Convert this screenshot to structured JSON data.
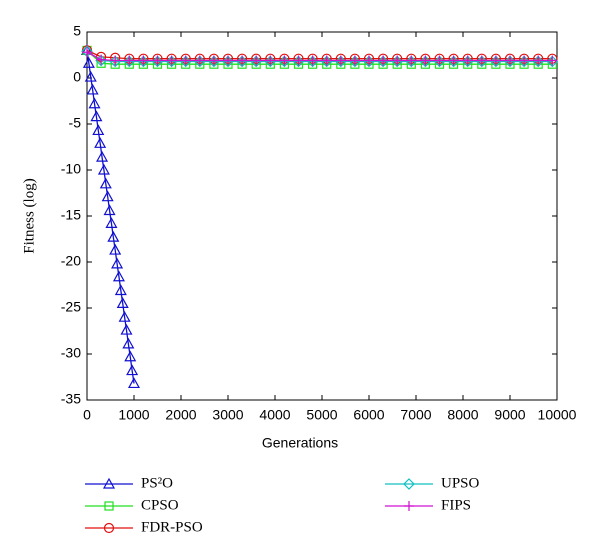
{
  "chart_data": {
    "type": "line",
    "xlabel": "Generations",
    "ylabel": "Fitness (log)",
    "xlim": [
      0,
      10000
    ],
    "xticks": [
      0,
      1000,
      2000,
      3000,
      4000,
      5000,
      6000,
      7000,
      8000,
      9000,
      10000
    ],
    "ylim": [
      -35,
      5
    ],
    "yticks": [
      -35,
      -30,
      -25,
      -20,
      -15,
      -10,
      -5,
      0,
      5
    ],
    "grid": false,
    "legend": "bottom",
    "series": [
      {
        "name": "PS²O",
        "color": "#1010d0",
        "marker": "triangle",
        "x": [
          0,
          40,
          80,
          120,
          160,
          200,
          240,
          280,
          320,
          360,
          400,
          440,
          480,
          520,
          560,
          600,
          640,
          680,
          720,
          760,
          800,
          840,
          880,
          920,
          960,
          1000
        ],
        "values": [
          3,
          1.6,
          0.1,
          -1.3,
          -2.8,
          -4.2,
          -5.7,
          -7.1,
          -8.6,
          -10.0,
          -11.5,
          -12.9,
          -14.4,
          -15.8,
          -17.3,
          -18.7,
          -20.2,
          -21.6,
          -23.1,
          -24.5,
          -26.0,
          -27.4,
          -28.9,
          -30.3,
          -31.8,
          -33.2
        ]
      },
      {
        "name": "CPSO",
        "color": "#20e020",
        "marker": "square",
        "x": [
          0,
          300,
          600,
          900,
          1200,
          1500,
          1800,
          2100,
          2400,
          2700,
          3000,
          3300,
          3600,
          3900,
          4200,
          4500,
          4800,
          5100,
          5400,
          5700,
          6000,
          6300,
          6600,
          6900,
          7200,
          7500,
          7800,
          8100,
          8400,
          8700,
          9000,
          9300,
          9600,
          9900
        ],
        "values": [
          3,
          1.6,
          1.5,
          1.5,
          1.5,
          1.5,
          1.5,
          1.5,
          1.5,
          1.5,
          1.5,
          1.5,
          1.5,
          1.5,
          1.5,
          1.5,
          1.5,
          1.5,
          1.5,
          1.5,
          1.5,
          1.5,
          1.5,
          1.5,
          1.5,
          1.5,
          1.5,
          1.5,
          1.5,
          1.5,
          1.5,
          1.5,
          1.5,
          1.5
        ]
      },
      {
        "name": "FDR-PSO",
        "color": "#e01010",
        "marker": "circle",
        "x": [
          0,
          300,
          600,
          900,
          1200,
          1500,
          1800,
          2100,
          2400,
          2700,
          3000,
          3300,
          3600,
          3900,
          4200,
          4500,
          4800,
          5100,
          5400,
          5700,
          6000,
          6300,
          6600,
          6900,
          7200,
          7500,
          7800,
          8100,
          8400,
          8700,
          9000,
          9300,
          9600,
          9900
        ],
        "values": [
          3,
          2.3,
          2.2,
          2.1,
          2.1,
          2.1,
          2.1,
          2.1,
          2.1,
          2.1,
          2.1,
          2.1,
          2.1,
          2.1,
          2.1,
          2.1,
          2.1,
          2.1,
          2.1,
          2.1,
          2.1,
          2.1,
          2.1,
          2.1,
          2.1,
          2.1,
          2.1,
          2.1,
          2.1,
          2.1,
          2.1,
          2.1,
          2.1,
          2.1
        ]
      },
      {
        "name": "UPSO",
        "color": "#10c0c0",
        "marker": "diamond",
        "x": [
          0,
          300,
          600,
          900,
          1200,
          1500,
          1800,
          2100,
          2400,
          2700,
          3000,
          3300,
          3600,
          3900,
          4200,
          4500,
          4800,
          5100,
          5400,
          5700,
          6000,
          6300,
          6600,
          6900,
          7200,
          7500,
          7800,
          8100,
          8400,
          8700,
          9000,
          9300,
          9600,
          9900
        ],
        "values": [
          2.9,
          1.9,
          1.8,
          1.8,
          1.8,
          1.8,
          1.8,
          1.8,
          1.8,
          1.8,
          1.8,
          1.8,
          1.8,
          1.8,
          1.8,
          1.8,
          1.8,
          1.8,
          1.8,
          1.8,
          1.8,
          1.8,
          1.8,
          1.8,
          1.8,
          1.8,
          1.8,
          1.8,
          1.8,
          1.8,
          1.8,
          1.8,
          1.8,
          1.8
        ]
      },
      {
        "name": "FIPS",
        "color": "#d010d0",
        "marker": "plus",
        "x": [
          0,
          300,
          600,
          900,
          1200,
          1500,
          1800,
          2100,
          2400,
          2700,
          3000,
          3300,
          3600,
          3900,
          4200,
          4500,
          4800,
          5100,
          5400,
          5700,
          6000,
          6300,
          6600,
          6900,
          7200,
          7500,
          7800,
          8100,
          8400,
          8700,
          9000,
          9300,
          9600,
          9900
        ],
        "values": [
          2.8,
          2.0,
          1.9,
          1.9,
          1.9,
          1.9,
          1.9,
          1.9,
          1.9,
          1.9,
          1.9,
          1.9,
          1.9,
          1.9,
          1.9,
          1.9,
          1.9,
          1.9,
          1.9,
          1.9,
          1.9,
          1.9,
          1.9,
          1.9,
          1.9,
          1.9,
          1.9,
          1.9,
          1.9,
          1.9,
          1.9,
          1.9,
          1.9,
          1.9
        ]
      }
    ]
  }
}
